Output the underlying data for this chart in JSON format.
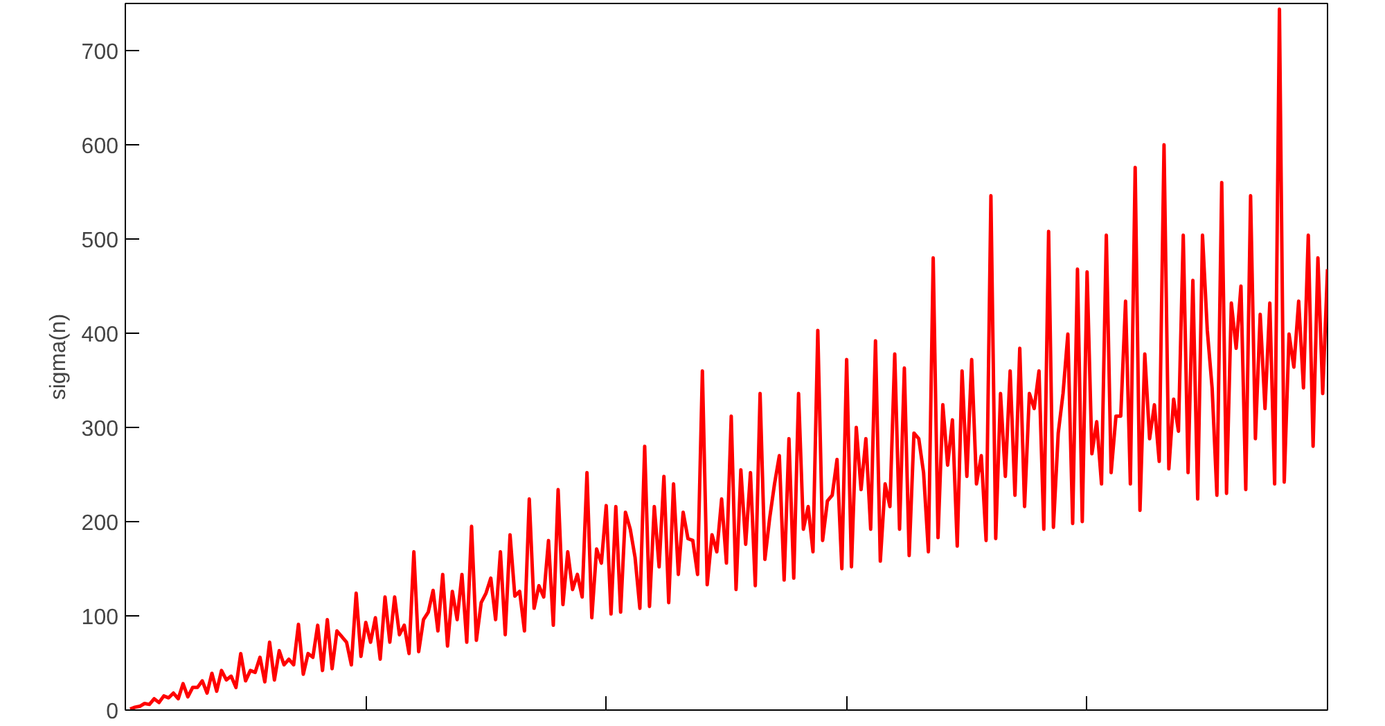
{
  "chart_data": {
    "type": "line",
    "ylabel": "sigma(n)",
    "categories": [
      null,
      null,
      null,
      null,
      null,
      null,
      null,
      null,
      null,
      null,
      null,
      null,
      null,
      null,
      null,
      null,
      null,
      null,
      null,
      null,
      null,
      null,
      null,
      null,
      null,
      null,
      null,
      null,
      null,
      null,
      null,
      null,
      null,
      null,
      null,
      null,
      null,
      null,
      null,
      null,
      null,
      null,
      null,
      null,
      null,
      null,
      null,
      null,
      null,
      null,
      null,
      null,
      null,
      null,
      null,
      null,
      null,
      null,
      null,
      null,
      null,
      null,
      null,
      null,
      null,
      null,
      null,
      null,
      null,
      null,
      null,
      null,
      null,
      null,
      null,
      null,
      null,
      null,
      null,
      null,
      null,
      null,
      null,
      null,
      null,
      null,
      null,
      null,
      null,
      null,
      null,
      null,
      null,
      null,
      null,
      null,
      null,
      null,
      null,
      null,
      null,
      null,
      null,
      null,
      null,
      null,
      null,
      null,
      null,
      null,
      null,
      null,
      null,
      null,
      null,
      null,
      null,
      null,
      null,
      null,
      null,
      null,
      null,
      null,
      null,
      null,
      null,
      null,
      null,
      null,
      null,
      null,
      null,
      null,
      null,
      null,
      null,
      null,
      null,
      null,
      null,
      null,
      null,
      null,
      null,
      null,
      null,
      null,
      null,
      null,
      null,
      null,
      null,
      null,
      null,
      null,
      null,
      null,
      null,
      null,
      null,
      null,
      null,
      null,
      null,
      null,
      null,
      null,
      null,
      null,
      null,
      null,
      null,
      null,
      null,
      null,
      null,
      null,
      null,
      null,
      null,
      null,
      null,
      null,
      null,
      null,
      null,
      null,
      null,
      null,
      null,
      null,
      null,
      null,
      null,
      null,
      null,
      null,
      null,
      null,
      null,
      null,
      null,
      null,
      null,
      null,
      null,
      null,
      null,
      null,
      null,
      null,
      null,
      null,
      null,
      null,
      null,
      null,
      null,
      null,
      null,
      null,
      null,
      null,
      null,
      null,
      null,
      null,
      null,
      null,
      null,
      null,
      null,
      null,
      null,
      null,
      null,
      null,
      null,
      null,
      null,
      null,
      null,
      null,
      null,
      null,
      null,
      null,
      null,
      null
    ],
    "series": [
      {
        "color": "#ff0000",
        "values": [
          1,
          3,
          4,
          7,
          6,
          12,
          8,
          15,
          13,
          18,
          12,
          28,
          14,
          24,
          24,
          31,
          18,
          39,
          20,
          42,
          32,
          36,
          24,
          60,
          31,
          42,
          40,
          56,
          30,
          72,
          32,
          63,
          48,
          54,
          48,
          91,
          38,
          60,
          56,
          90,
          42,
          96,
          44,
          84,
          78,
          72,
          48,
          124,
          57,
          93,
          72,
          98,
          54,
          120,
          72,
          120,
          80,
          90,
          60,
          168,
          62,
          96,
          104,
          127,
          84,
          144,
          68,
          126,
          96,
          144,
          72,
          195,
          74,
          114,
          124,
          140,
          96,
          168,
          80,
          186,
          121,
          126,
          84,
          224,
          108,
          132,
          120,
          180,
          90,
          234,
          112,
          168,
          128,
          144,
          120,
          252,
          98,
          171,
          156,
          217,
          102,
          216,
          104,
          210,
          192,
          162,
          108,
          280,
          110,
          216,
          152,
          248,
          114,
          240,
          144,
          210,
          182,
          180,
          144,
          360,
          133,
          186,
          168,
          224,
          156,
          312,
          128,
          255,
          176,
          252,
          132,
          336,
          160,
          204,
          240,
          270,
          138,
          288,
          140,
          336,
          192,
          216,
          168,
          403,
          180,
          222,
          228,
          266,
          150,
          372,
          152,
          300,
          234,
          288,
          192,
          392,
          158,
          240,
          216,
          378,
          192,
          363,
          164,
          294,
          288,
          252,
          168,
          480,
          183,
          324,
          260,
          308,
          174,
          360,
          248,
          372,
          240,
          270,
          180,
          546,
          182,
          336,
          248,
          360,
          228,
          384,
          216,
          336,
          320,
          360,
          192,
          508,
          194,
          294,
          336,
          399,
          198,
          468,
          200,
          465,
          272,
          306,
          240,
          504,
          252,
          312,
          312,
          434,
          240,
          576,
          212,
          378,
          288,
          324,
          264,
          600,
          256,
          330,
          296,
          504,
          252,
          456,
          224,
          504,
          403,
          342,
          228,
          560,
          230,
          432,
          384,
          450,
          234,
          546,
          288,
          420,
          320,
          432,
          240,
          744,
          242,
          399,
          364,
          434,
          342,
          504,
          280,
          480,
          336,
          468
        ]
      }
    ],
    "ylim": [
      0,
      750
    ],
    "yticks": [
      0,
      100,
      200,
      300,
      400,
      500,
      600,
      700
    ],
    "grid": false
  }
}
